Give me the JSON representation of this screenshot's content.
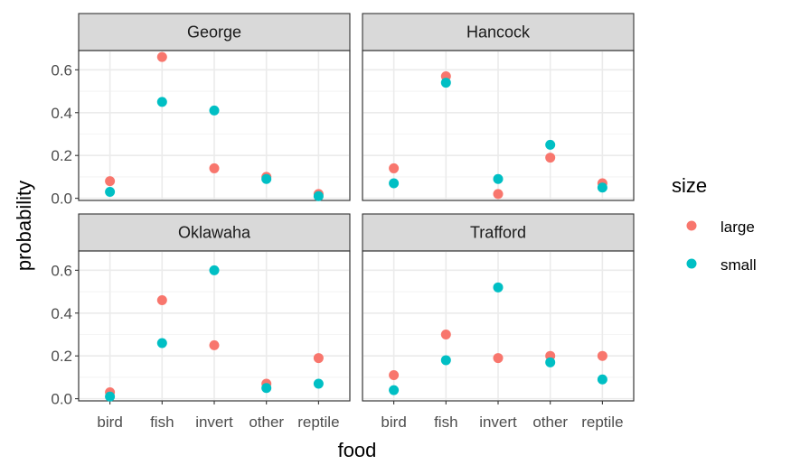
{
  "chart_data": {
    "type": "scatter",
    "xlabel": "food",
    "ylabel": "probability",
    "categories": [
      "bird",
      "fish",
      "invert",
      "other",
      "reptile"
    ],
    "ylim": [
      -0.01,
      0.69
    ],
    "yticks": [
      0.0,
      0.2,
      0.4,
      0.6
    ],
    "ytick_labels": [
      "0.0",
      "0.2",
      "0.4",
      "0.6"
    ],
    "grid": true,
    "legend": {
      "title": "size",
      "position": "right",
      "entries": [
        {
          "name": "large",
          "color": "#F8766D"
        },
        {
          "name": "small",
          "color": "#00BFC4"
        }
      ]
    },
    "panels": [
      {
        "name": "George",
        "series": [
          {
            "name": "large",
            "values": [
              0.08,
              0.66,
              0.14,
              0.1,
              0.02
            ]
          },
          {
            "name": "small",
            "values": [
              0.03,
              0.45,
              0.41,
              0.09,
              0.01
            ]
          }
        ]
      },
      {
        "name": "Hancock",
        "series": [
          {
            "name": "large",
            "values": [
              0.14,
              0.57,
              0.02,
              0.19,
              0.07
            ]
          },
          {
            "name": "small",
            "values": [
              0.07,
              0.54,
              0.09,
              0.25,
              0.05
            ]
          }
        ]
      },
      {
        "name": "Oklawaha",
        "series": [
          {
            "name": "large",
            "values": [
              0.03,
              0.46,
              0.25,
              0.07,
              0.19
            ]
          },
          {
            "name": "small",
            "values": [
              0.01,
              0.26,
              0.6,
              0.05,
              0.07
            ]
          }
        ]
      },
      {
        "name": "Trafford",
        "series": [
          {
            "name": "large",
            "values": [
              0.11,
              0.3,
              0.19,
              0.2,
              0.2
            ]
          },
          {
            "name": "small",
            "values": [
              0.04,
              0.18,
              0.52,
              0.17,
              0.09
            ]
          }
        ]
      }
    ]
  }
}
